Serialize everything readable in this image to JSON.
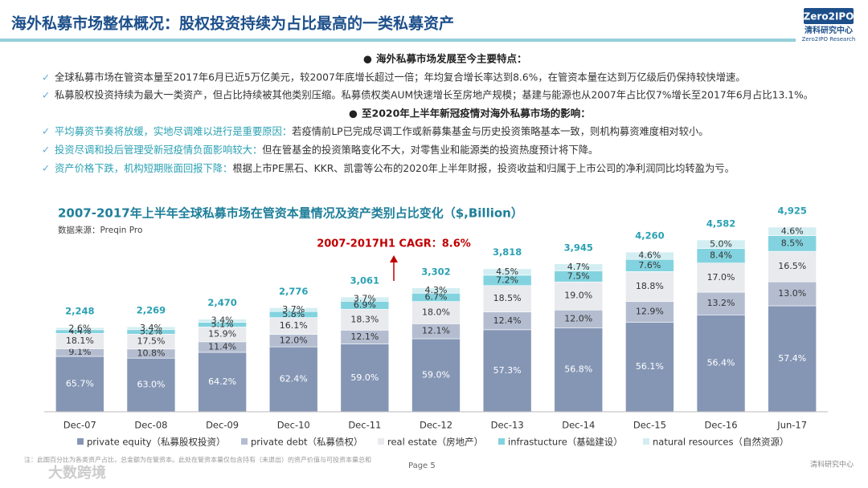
{
  "header": {
    "title": "海外私募市场整体概况：股权投资持续为占比最高的一类私募资产",
    "logo": "Zero2IPO",
    "logo_cn": "清科研究中心",
    "logo_en": "Zero2IPO Research"
  },
  "section1": {
    "heading": "海外私募市场发展至今主要特点：",
    "items": [
      "全球私募市场在管资本量至2017年6月已近5万亿美元，较2007年底增长超过一倍；年均复合增长率达到8.6%，在管资本量在达到万亿级后仍保持较快增速。",
      "私募股权投资持续为最大一类资产，但占比持续被其他类别压缩。私募债权类AUM快速增长至房地产规模；基建与能源也从2007年占比仅7%增长至2017年6月占比13.1%。"
    ]
  },
  "section2": {
    "heading": "至2020年上半年新冠疫情对海外私募市场的影响：",
    "items": [
      {
        "lead": "平均募资节奏将放缓，实地尽调难以进行是重要原因：",
        "text": "若疫情前LP已完成尽调工作或新募集基金与历史投资策略基本一致，则机构募资难度相对较小。"
      },
      {
        "lead": "投资尽调和投后管理受新冠疫情负面影响较大：",
        "text": "但在管基金的投资策略变化不大，对零售业和能源类的投资热度预计将下降。"
      },
      {
        "lead": "资产价格下跌，机构短期账面回报下降：",
        "text": "根据上市PE黑石、KKR、凯雷等公布的2020年上半年财报，投资收益和归属于上市公司的净利润同比均转盈为亏。"
      }
    ]
  },
  "chart_data": {
    "type": "stacked_bar",
    "title": "2007-2017年上半年全球私募市场在管资本量情况及资产类别占比变化（$,Billion）",
    "source": "数据来源：Preqin Pro",
    "annotation": "2007-2017H1 CAGR：8.6%",
    "categories": [
      "Dec-07",
      "Dec-08",
      "Dec-09",
      "Dec-10",
      "Dec-11",
      "Dec-12",
      "Dec-13",
      "Dec-14",
      "Dec-15",
      "Dec-16",
      "Jun-17"
    ],
    "totals": {
      "values": [
        2248,
        2269,
        2470,
        2776,
        3061,
        3302,
        3818,
        3945,
        4260,
        4582,
        4925
      ],
      "value_labels": [
        "2,248",
        "2,269",
        "2,470",
        "2,776",
        "3,061",
        "3,302",
        "3,818",
        "3,945",
        "4,260",
        "4,582",
        "4,925"
      ],
      "color": "#2aa1b3"
    },
    "series": [
      {
        "name": "private equity（私募股权投资）",
        "color": "#8596b5",
        "values": [
          65.7,
          63.0,
          64.2,
          62.4,
          59.0,
          59.0,
          57.3,
          56.8,
          56.1,
          56.4,
          57.4
        ],
        "value_labels": [
          "65.7%",
          "63.0%",
          "64.2%",
          "62.4%",
          "59.0%",
          "59.0%",
          "57.3%",
          "56.8%",
          "56.1%",
          "56.4%",
          "57.4%"
        ]
      },
      {
        "name": "private debt（私募债权）",
        "color": "#b4bdd0",
        "values": [
          9.1,
          10.8,
          11.4,
          12.0,
          12.1,
          12.1,
          12.4,
          12.0,
          12.9,
          13.2,
          13.0
        ],
        "value_labels": [
          "9.1%",
          "10.8%",
          "11.4%",
          "12.0%",
          "12.1%",
          "12.1%",
          "12.4%",
          "12.0%",
          "12.9%",
          "13.2%",
          "13.0%"
        ]
      },
      {
        "name": "real estate（房地产）",
        "color": "#e8eaee",
        "values": [
          18.1,
          17.5,
          15.9,
          16.1,
          18.3,
          18.0,
          18.5,
          19.0,
          18.8,
          17.0,
          16.5
        ],
        "value_labels": [
          "18.1%",
          "17.5%",
          "15.9%",
          "16.1%",
          "18.3%",
          "18.0%",
          "18.5%",
          "19.0%",
          "18.8%",
          "17.0%",
          "16.5%"
        ]
      },
      {
        "name": "infrastucture（基础建设）",
        "color": "#82d3df",
        "values": [
          4.4,
          5.2,
          5.1,
          5.8,
          6.9,
          6.7,
          7.2,
          7.5,
          7.6,
          8.4,
          8.5
        ],
        "value_labels": [
          "4.4%",
          "5.2%",
          "5.1%",
          "5.8%",
          "6.9%",
          "6.7%",
          "7.2%",
          "7.5%",
          "7.6%",
          "8.4%",
          "8.5%"
        ]
      },
      {
        "name": "natural resources（自然资源）",
        "color": "#d3eef2",
        "values": [
          2.6,
          3.4,
          3.4,
          3.7,
          3.7,
          4.3,
          4.5,
          4.7,
          4.6,
          5.0,
          4.6
        ],
        "value_labels": [
          "2.6%",
          "3.4%",
          "3.4%",
          "3.7%",
          "3.7%",
          "4.3%",
          "4.5%",
          "4.7%",
          "4.6%",
          "5.0%",
          "4.6%"
        ]
      }
    ]
  },
  "footer": {
    "note": "注：此图百分比为各类资产占比，总金额为在管资本。此处在管资本量仅包含持有（未退出）的资产价值与可投资本量总和",
    "page": "Page  5",
    "watermark": "大数跨境",
    "brand": "清科研究中心"
  }
}
